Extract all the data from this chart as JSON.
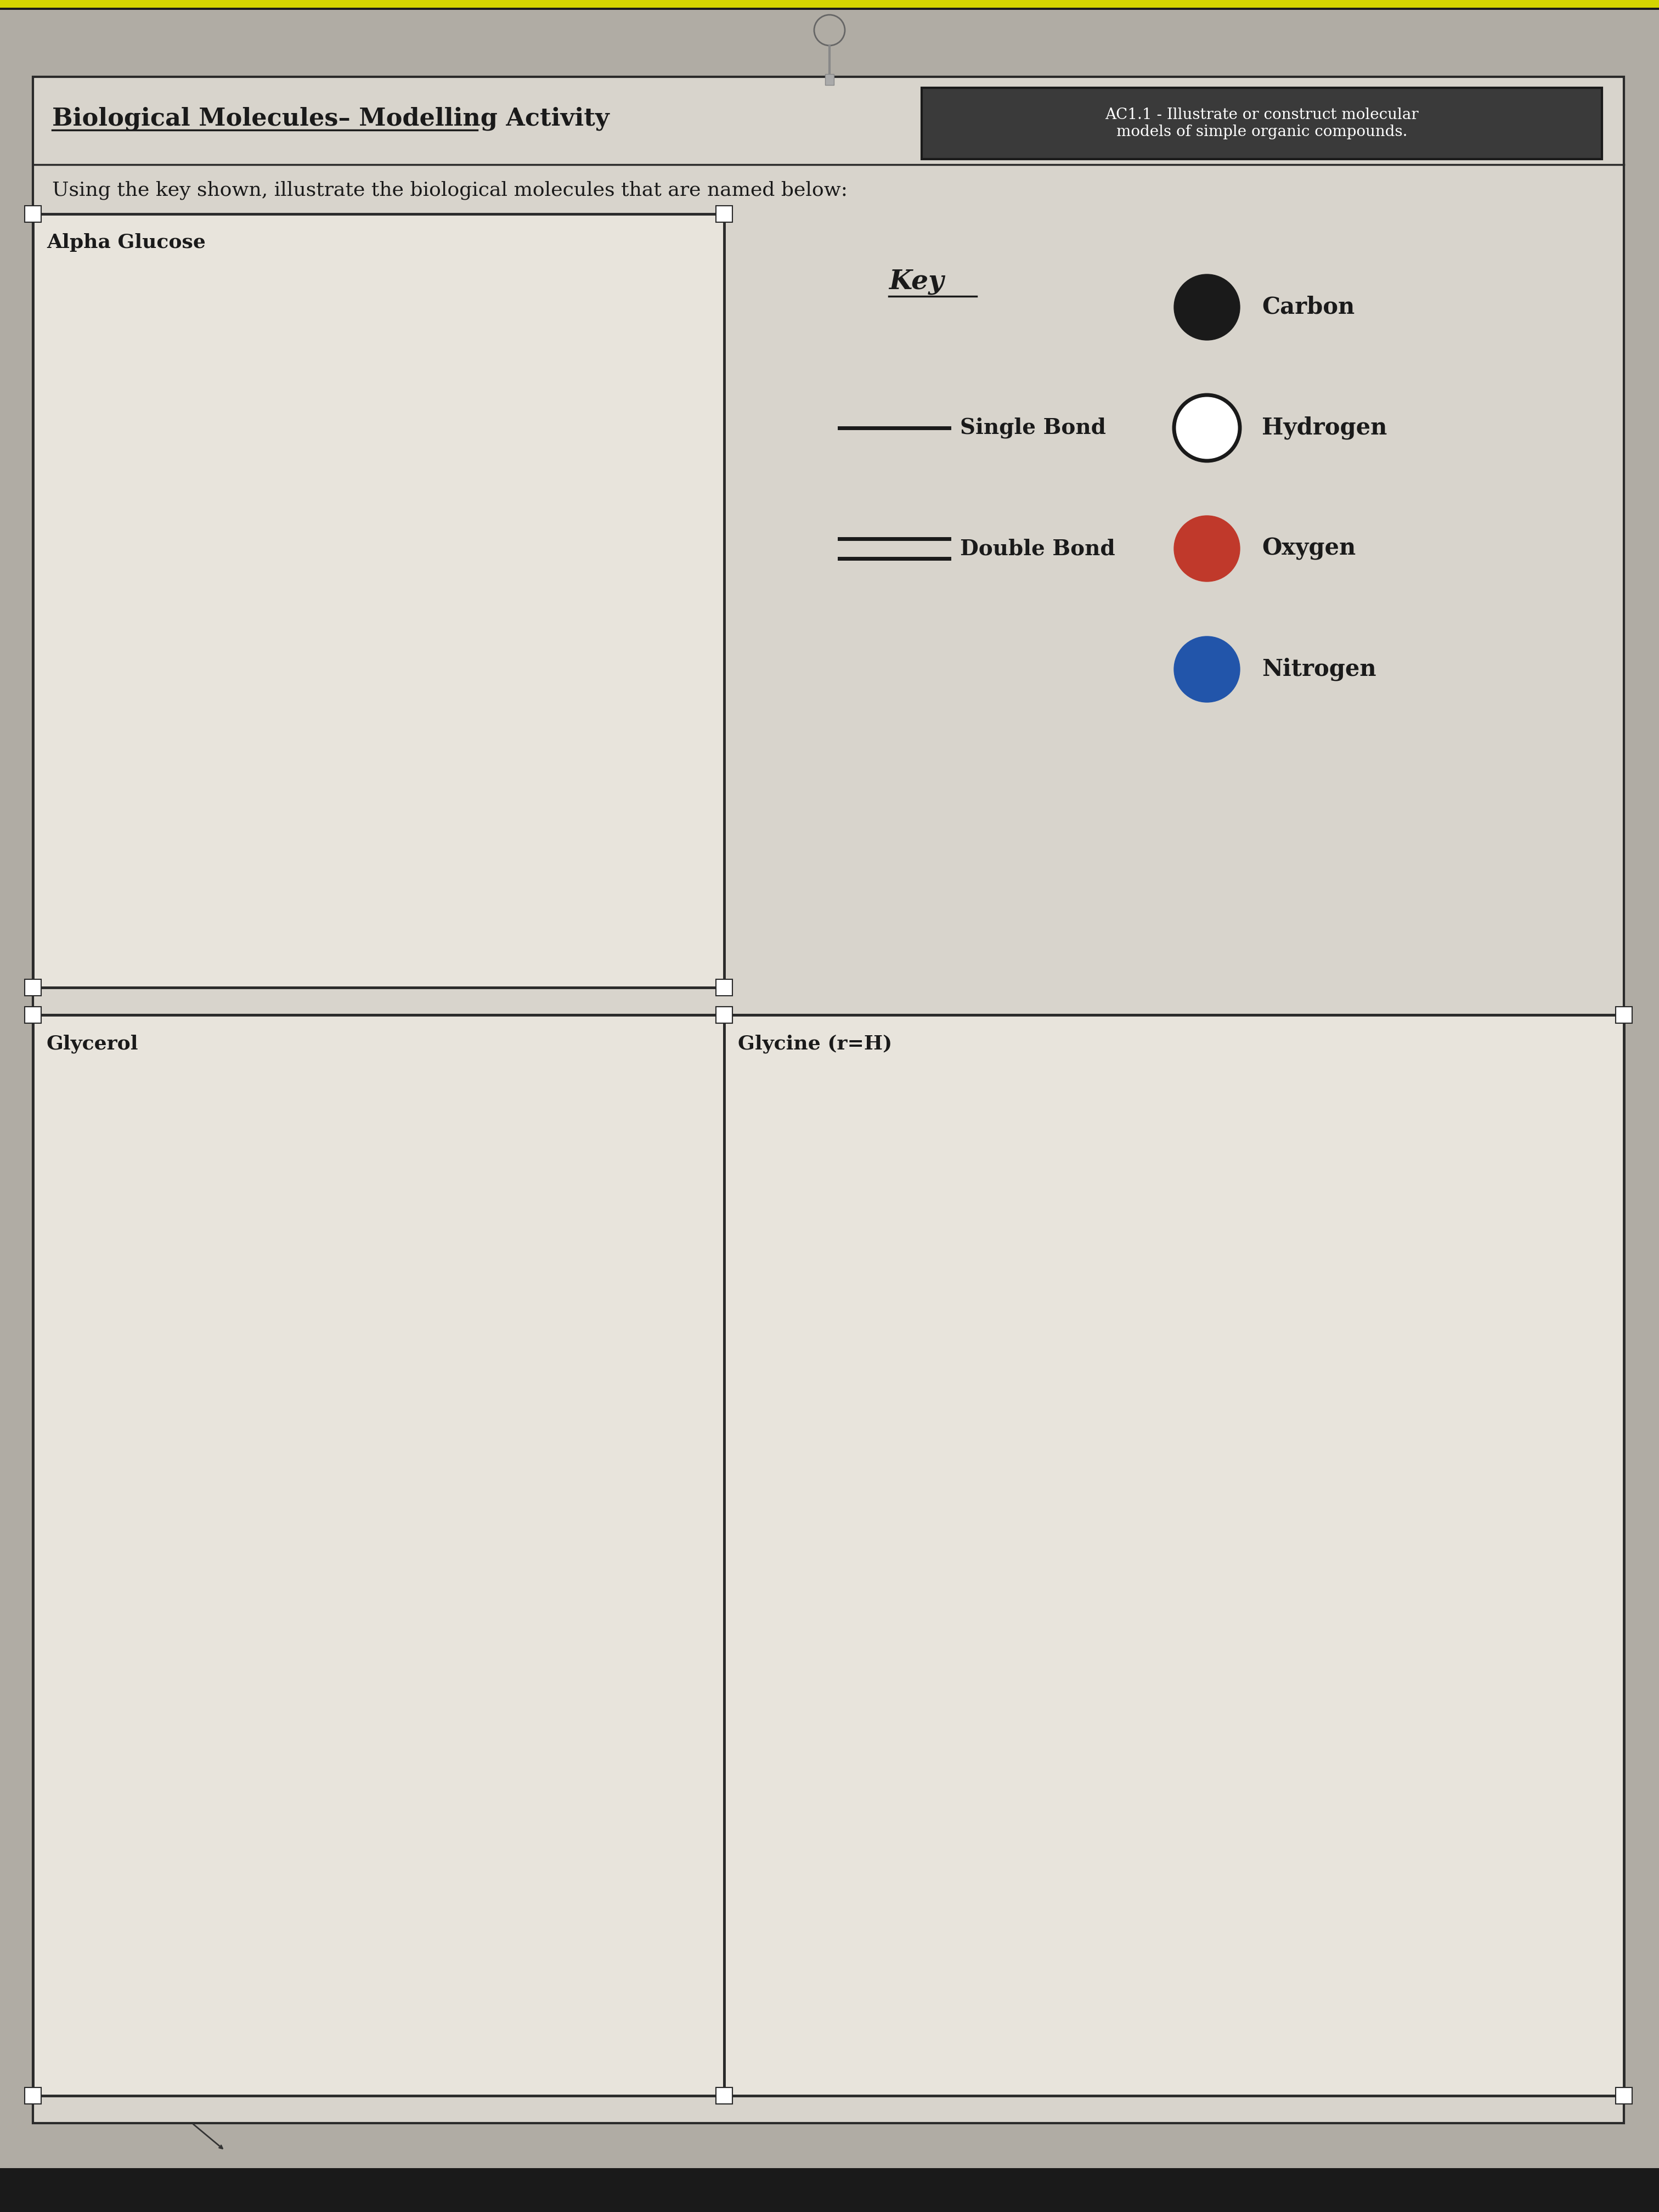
{
  "title": "Biological Molecules– Modelling Activity",
  "ac_text": "AC1.1 - Illustrate or construct molecular\nmodels of simple organic compounds.",
  "instruction": "Using the key shown, illustrate the biological molecules that are named below:",
  "box1_label": "Alpha Glucose",
  "box2_label": "Glycerol",
  "box3_label": "Glycine (r=H)",
  "key_title": "Key",
  "page_bg_outer": "#b0aca4",
  "page_bg_inner": "#c8c4bc",
  "doc_bg": "#d8d4cc",
  "box_bg": "#d0ccC4",
  "white_box_bg": "#e8e4dc",
  "border_color": "#2a2a2a",
  "text_color": "#1a1a1a",
  "ac_box_bg": "#444444",
  "ac_box_border": "#222222",
  "yellow_bar_color": "#d4d400",
  "dark_bar_color": "#1a1a1a",
  "carbon_color": "#1a1a1a",
  "hydrogen_fill": "#ffffff",
  "hydrogen_border": "#1a1a1a",
  "oxygen_color": "#c0392b",
  "nitrogen_color": "#2255aa",
  "bond_color": "#1a1a1a",
  "cursor_color": "#333333"
}
